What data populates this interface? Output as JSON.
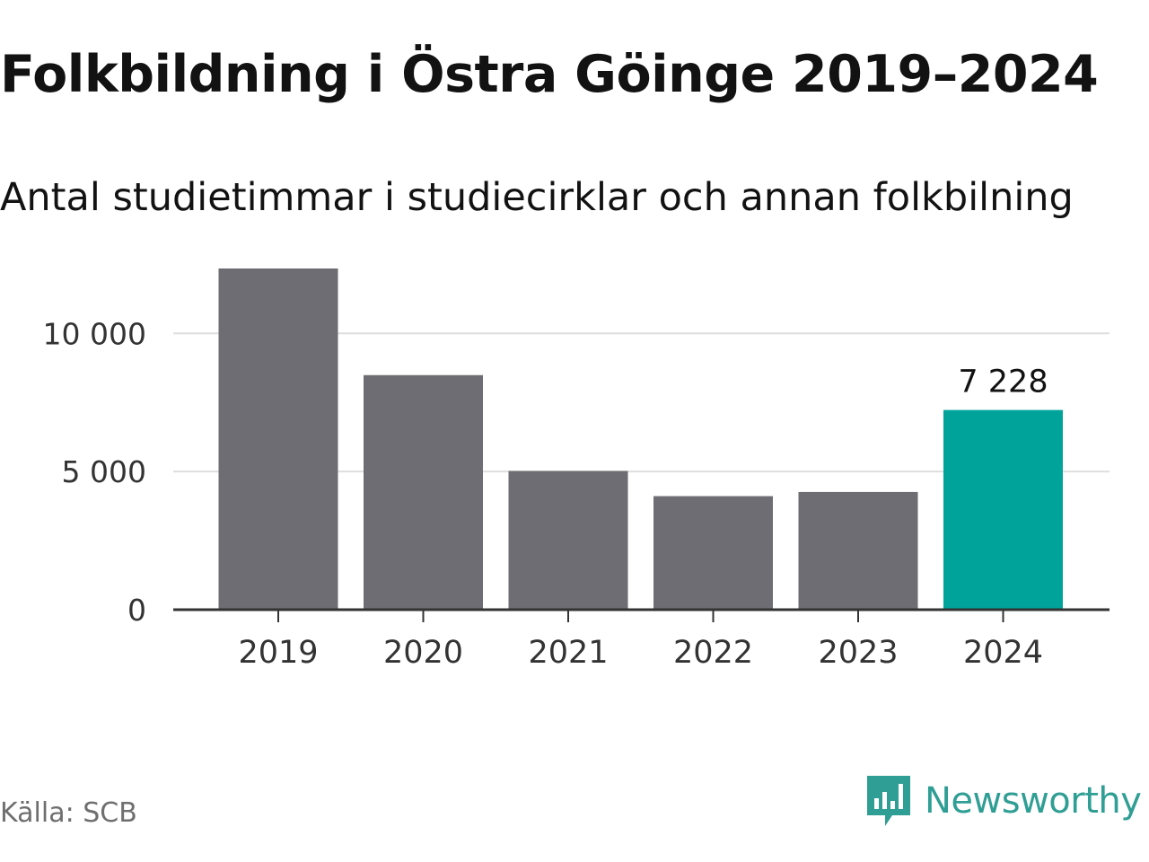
{
  "header": {
    "title": "Folkbildning i Östra Göinge 2019–2024",
    "subtitle": "Antal studietimmar i studiecirklar och annan folkbilning"
  },
  "footer": {
    "source": "Källa: SCB",
    "brand": "Newsworthy",
    "brand_icon": "newsworthy-logo-icon"
  },
  "colors": {
    "bar": "#6e6d73",
    "highlight": "#00a39a",
    "grid": "#dedede",
    "axis": "#333333",
    "text": "#333333",
    "brand": "#2f9e94"
  },
  "chart_data": {
    "type": "bar",
    "categories": [
      "2019",
      "2020",
      "2021",
      "2022",
      "2023",
      "2024"
    ],
    "values": [
      12350,
      8490,
      5020,
      4110,
      4260,
      7228
    ],
    "highlight_index": 5,
    "data_labels": [
      {
        "index": 5,
        "text": "7 228"
      }
    ],
    "y_ticks": [
      {
        "value": 0,
        "label": "0"
      },
      {
        "value": 5000,
        "label": "5 000"
      },
      {
        "value": 10000,
        "label": "10 000"
      }
    ],
    "ylim": [
      0,
      13000
    ],
    "grid": true,
    "xlabel": "",
    "ylabel": ""
  }
}
